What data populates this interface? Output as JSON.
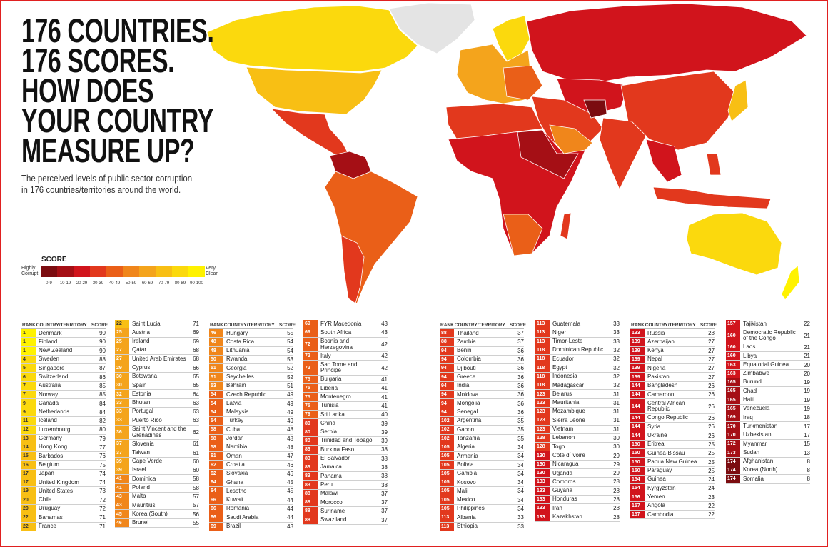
{
  "title_lines": [
    "176 COUNTRIES.",
    "176 SCORES.",
    "HOW DOES",
    "YOUR COUNTRY",
    "MEASURE UP?"
  ],
  "subtitle_lines": [
    "The perceived levels of public sector corruption",
    "in 176 countries/territories around the world."
  ],
  "legend": {
    "title": "SCORE",
    "low": "Highly Corrupt",
    "high": "Very Clean",
    "bands": [
      {
        "label": "0-9",
        "color": "#7b0c10"
      },
      {
        "label": "10-19",
        "color": "#a50f15"
      },
      {
        "label": "20-29",
        "color": "#d1141c"
      },
      {
        "label": "30-39",
        "color": "#e2381d"
      },
      {
        "label": "40-49",
        "color": "#ea5f18"
      },
      {
        "label": "50-59",
        "color": "#f0861b"
      },
      {
        "label": "60-69",
        "color": "#f4a41c"
      },
      {
        "label": "70-79",
        "color": "#f8bf14"
      },
      {
        "label": "80-89",
        "color": "#fbd90d"
      },
      {
        "label": "90-100",
        "color": "#fff200"
      }
    ]
  },
  "table_headers": {
    "rank": "RANK",
    "country": "COUNTRY/TERRITORY",
    "score": "SCORE"
  },
  "columns": [
    {
      "header": true,
      "rows": [
        [
          1,
          "Denmark",
          90
        ],
        [
          1,
          "Finland",
          90
        ],
        [
          1,
          "New Zealand",
          90
        ],
        [
          4,
          "Sweden",
          88
        ],
        [
          5,
          "Singapore",
          87
        ],
        [
          6,
          "Switzerland",
          86
        ],
        [
          7,
          "Australia",
          85
        ],
        [
          7,
          "Norway",
          85
        ],
        [
          9,
          "Canada",
          84
        ],
        [
          9,
          "Netherlands",
          84
        ],
        [
          11,
          "Iceland",
          82
        ],
        [
          12,
          "Luxembourg",
          80
        ],
        [
          13,
          "Germany",
          79
        ],
        [
          14,
          "Hong Kong",
          77
        ],
        [
          15,
          "Barbados",
          76
        ],
        [
          16,
          "Belgium",
          75
        ],
        [
          17,
          "Japan",
          74
        ],
        [
          17,
          "United Kingdom",
          74
        ],
        [
          19,
          "United States",
          73
        ],
        [
          20,
          "Chile",
          72
        ],
        [
          20,
          "Uruguay",
          72
        ],
        [
          22,
          "Bahamas",
          71
        ],
        [
          22,
          "France",
          71
        ]
      ]
    },
    {
      "header": false,
      "rows": [
        [
          22,
          "Saint Lucia",
          71
        ],
        [
          25,
          "Austria",
          69
        ],
        [
          25,
          "Ireland",
          69
        ],
        [
          27,
          "Qatar",
          68
        ],
        [
          27,
          "United Arab Emirates",
          68
        ],
        [
          29,
          "Cyprus",
          66
        ],
        [
          30,
          "Botswana",
          65
        ],
        [
          30,
          "Spain",
          65
        ],
        [
          32,
          "Estonia",
          64
        ],
        [
          33,
          "Bhutan",
          63
        ],
        [
          33,
          "Portugal",
          63
        ],
        [
          33,
          "Puerto Rico",
          63
        ],
        [
          36,
          "Saint Vincent and the Grenadines",
          62
        ],
        [
          37,
          "Slovenia",
          61
        ],
        [
          37,
          "Taiwan",
          61
        ],
        [
          39,
          "Cape Verde",
          60
        ],
        [
          39,
          "Israel",
          60
        ],
        [
          41,
          "Dominica",
          58
        ],
        [
          41,
          "Poland",
          58
        ],
        [
          43,
          "Malta",
          57
        ],
        [
          43,
          "Mauritius",
          57
        ],
        [
          45,
          "Korea (South)",
          56
        ],
        [
          46,
          "Brunei",
          55
        ]
      ]
    },
    {
      "header": true,
      "rows": [
        [
          46,
          "Hungary",
          55
        ],
        [
          48,
          "Costa Rica",
          54
        ],
        [
          48,
          "Lithuania",
          54
        ],
        [
          50,
          "Rwanda",
          53
        ],
        [
          51,
          "Georgia",
          52
        ],
        [
          51,
          "Seychelles",
          52
        ],
        [
          53,
          "Bahrain",
          51
        ],
        [
          54,
          "Czech Republic",
          49
        ],
        [
          54,
          "Latvia",
          49
        ],
        [
          54,
          "Malaysia",
          49
        ],
        [
          54,
          "Turkey",
          49
        ],
        [
          58,
          "Cuba",
          48
        ],
        [
          58,
          "Jordan",
          48
        ],
        [
          58,
          "Namibia",
          48
        ],
        [
          61,
          "Oman",
          47
        ],
        [
          62,
          "Croatia",
          46
        ],
        [
          62,
          "Slovakia",
          46
        ],
        [
          64,
          "Ghana",
          45
        ],
        [
          64,
          "Lesotho",
          45
        ],
        [
          66,
          "Kuwait",
          44
        ],
        [
          66,
          "Romania",
          44
        ],
        [
          66,
          "Saudi Arabia",
          44
        ],
        [
          69,
          "Brazil",
          43
        ]
      ]
    },
    {
      "header": false,
      "rows": [
        [
          69,
          "FYR Macedonia",
          43
        ],
        [
          69,
          "South Africa",
          43
        ],
        [
          72,
          "Bosnia and Herzegovina",
          42
        ],
        [
          72,
          "Italy",
          42
        ],
        [
          72,
          "Sao Tome and Principe",
          42
        ],
        [
          75,
          "Bulgaria",
          41
        ],
        [
          75,
          "Liberia",
          41
        ],
        [
          75,
          "Montenegro",
          41
        ],
        [
          75,
          "Tunisia",
          41
        ],
        [
          79,
          "Sri Lanka",
          40
        ],
        [
          80,
          "China",
          39
        ],
        [
          80,
          "Serbia",
          39
        ],
        [
          80,
          "Trinidad and Tobago",
          39
        ],
        [
          83,
          "Burkina Faso",
          38
        ],
        [
          83,
          "El Salvador",
          38
        ],
        [
          83,
          "Jamaica",
          38
        ],
        [
          83,
          "Panama",
          38
        ],
        [
          83,
          "Peru",
          38
        ],
        [
          88,
          "Malawi",
          37
        ],
        [
          88,
          "Morocco",
          37
        ],
        [
          88,
          "Suriname",
          37
        ],
        [
          88,
          "Swaziland",
          37
        ]
      ]
    },
    {
      "header": true,
      "rows": [
        [
          88,
          "Thailand",
          37
        ],
        [
          88,
          "Zambia",
          37
        ],
        [
          94,
          "Benin",
          36
        ],
        [
          94,
          "Colombia",
          36
        ],
        [
          94,
          "Djibouti",
          36
        ],
        [
          94,
          "Greece",
          36
        ],
        [
          94,
          "India",
          36
        ],
        [
          94,
          "Moldova",
          36
        ],
        [
          94,
          "Mongolia",
          36
        ],
        [
          94,
          "Senegal",
          36
        ],
        [
          102,
          "Argentina",
          35
        ],
        [
          102,
          "Gabon",
          35
        ],
        [
          102,
          "Tanzania",
          35
        ],
        [
          105,
          "Algeria",
          34
        ],
        [
          105,
          "Armenia",
          34
        ],
        [
          105,
          "Bolivia",
          34
        ],
        [
          105,
          "Gambia",
          34
        ],
        [
          105,
          "Kosovo",
          34
        ],
        [
          105,
          "Mali",
          34
        ],
        [
          105,
          "Mexico",
          34
        ],
        [
          105,
          "Philippines",
          34
        ],
        [
          113,
          "Albania",
          33
        ],
        [
          113,
          "Ethiopia",
          33
        ]
      ]
    },
    {
      "header": false,
      "rows": [
        [
          113,
          "Guatemala",
          33
        ],
        [
          113,
          "Niger",
          33
        ],
        [
          113,
          "Timor-Leste",
          33
        ],
        [
          118,
          "Dominican Republic",
          32
        ],
        [
          118,
          "Ecuador",
          32
        ],
        [
          118,
          "Egypt",
          32
        ],
        [
          118,
          "Indonesia",
          32
        ],
        [
          118,
          "Madagascar",
          32
        ],
        [
          123,
          "Belarus",
          31
        ],
        [
          123,
          "Mauritania",
          31
        ],
        [
          123,
          "Mozambique",
          31
        ],
        [
          123,
          "Sierra Leone",
          31
        ],
        [
          123,
          "Vietnam",
          31
        ],
        [
          128,
          "Lebanon",
          30
        ],
        [
          128,
          "Togo",
          30
        ],
        [
          130,
          "Côte d´Ivoire",
          29
        ],
        [
          130,
          "Nicaragua",
          29
        ],
        [
          130,
          "Uganda",
          29
        ],
        [
          133,
          "Comoros",
          28
        ],
        [
          133,
          "Guyana",
          28
        ],
        [
          133,
          "Honduras",
          28
        ],
        [
          133,
          "Iran",
          28
        ],
        [
          133,
          "Kazakhstan",
          28
        ]
      ]
    },
    {
      "header": true,
      "rows": [
        [
          133,
          "Russia",
          28
        ],
        [
          139,
          "Azerbaijan",
          27
        ],
        [
          139,
          "Kenya",
          27
        ],
        [
          139,
          "Nepal",
          27
        ],
        [
          139,
          "Nigeria",
          27
        ],
        [
          139,
          "Pakistan",
          27
        ],
        [
          144,
          "Bangladesh",
          26
        ],
        [
          144,
          "Cameroon",
          26
        ],
        [
          144,
          "Central African Republic",
          26
        ],
        [
          144,
          "Congo Republic",
          26
        ],
        [
          144,
          "Syria",
          26
        ],
        [
          144,
          "Ukraine",
          26
        ],
        [
          150,
          "Eritrea",
          25
        ],
        [
          150,
          "Guinea-Bissau",
          25
        ],
        [
          150,
          "Papua New Guinea",
          25
        ],
        [
          150,
          "Paraguay",
          25
        ],
        [
          154,
          "Guinea",
          24
        ],
        [
          154,
          "Kyrgyzstan",
          24
        ],
        [
          156,
          "Yemen",
          23
        ],
        [
          157,
          "Angola",
          22
        ],
        [
          157,
          "Cambodia",
          22
        ]
      ]
    },
    {
      "header": false,
      "rows": [
        [
          157,
          "Tajikistan",
          22
        ],
        [
          160,
          "Democratic Republic of the Congo",
          21
        ],
        [
          160,
          "Laos",
          21
        ],
        [
          160,
          "Libya",
          21
        ],
        [
          163,
          "Equatorial Guinea",
          20
        ],
        [
          163,
          "Zimbabwe",
          20
        ],
        [
          165,
          "Burundi",
          19
        ],
        [
          165,
          "Chad",
          19
        ],
        [
          165,
          "Haiti",
          19
        ],
        [
          165,
          "Venezuela",
          19
        ],
        [
          169,
          "Iraq",
          18
        ],
        [
          170,
          "Turkmenistan",
          17
        ],
        [
          170,
          "Uzbekistan",
          17
        ],
        [
          172,
          "Myanmar",
          15
        ],
        [
          173,
          "Sudan",
          13
        ],
        [
          174,
          "Afghanistan",
          8
        ],
        [
          174,
          "Korea (North)",
          8
        ],
        [
          174,
          "Somalia",
          8
        ]
      ]
    }
  ]
}
